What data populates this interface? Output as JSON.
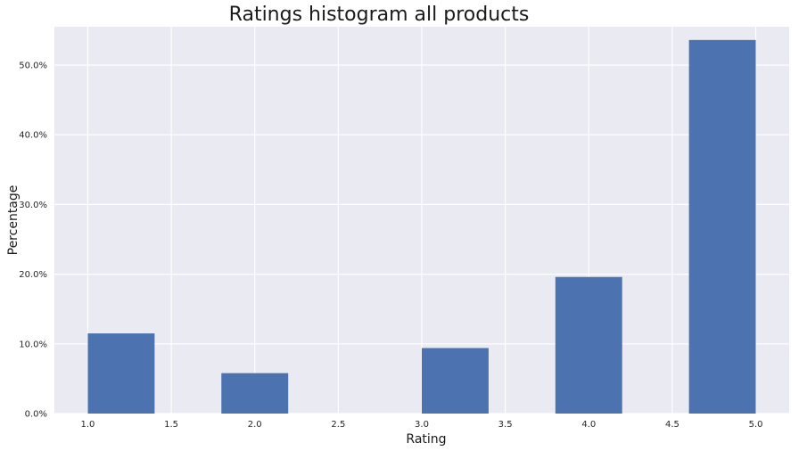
{
  "chart_data": {
    "type": "bar",
    "title": "Ratings histogram all products",
    "xlabel": "Rating",
    "ylabel": "Percentage",
    "xlim": [
      0.8,
      5.2
    ],
    "ylim": [
      0,
      0.555
    ],
    "x_ticks": [
      1.0,
      1.5,
      2.0,
      2.5,
      3.0,
      3.5,
      4.0,
      4.5,
      5.0
    ],
    "x_tick_labels": [
      "1.0",
      "1.5",
      "2.0",
      "2.5",
      "3.0",
      "3.5",
      "4.0",
      "4.5",
      "5.0"
    ],
    "y_ticks": [
      0,
      0.1,
      0.2,
      0.3,
      0.4,
      0.5
    ],
    "y_tick_labels": [
      "0.0%",
      "10.0%",
      "20.0%",
      "30.0%",
      "40.0%",
      "50.0%"
    ],
    "bins": [
      {
        "start": 1.0,
        "end": 1.4,
        "value": 0.115
      },
      {
        "start": 1.8,
        "end": 2.2,
        "value": 0.058
      },
      {
        "start": 3.0,
        "end": 3.4,
        "value": 0.094
      },
      {
        "start": 3.8,
        "end": 4.2,
        "value": 0.196
      },
      {
        "start": 4.6,
        "end": 5.0,
        "value": 0.536
      }
    ],
    "grid": true,
    "colors": {
      "bar": "#4c72b0",
      "plot_background": "#eaeaf2",
      "grid": "#ffffff"
    }
  }
}
